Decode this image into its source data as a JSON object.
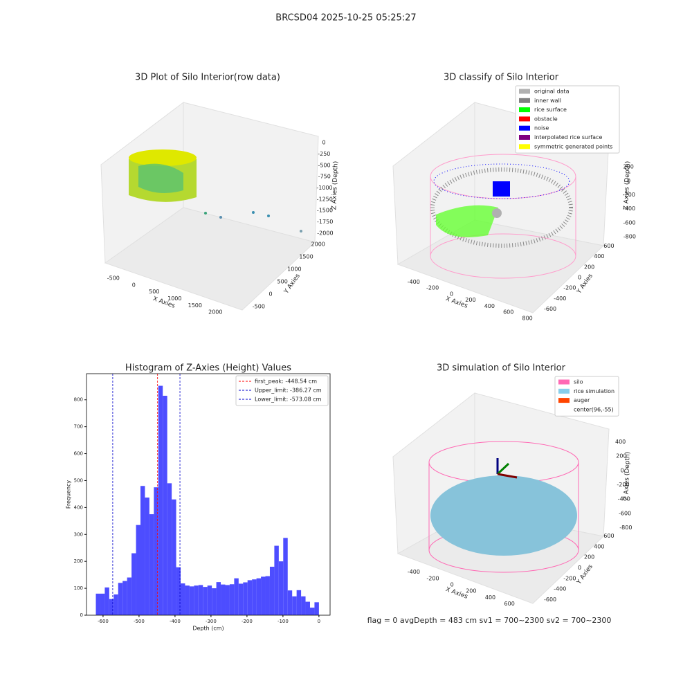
{
  "figure_title": "BRCSD04 2025-10-25 05:25:27",
  "chart_data": [
    {
      "type": "scatter3d",
      "title": "3D Plot of Silo Interior(row data)",
      "xlabel": "X Axies",
      "ylabel": "Y Axies",
      "zlabel": "Z Axies (Depth)",
      "xlim": [
        -700,
        2300
      ],
      "xticks": [
        -500,
        0,
        500,
        1000,
        1500,
        2000
      ],
      "ylim": [
        -700,
        2300
      ],
      "yticks": [
        -500,
        0,
        500,
        1000,
        1500,
        2000
      ],
      "zlim": [
        -2100,
        100
      ],
      "zticks": [
        0,
        -250,
        -500,
        -750,
        -1000,
        -1250,
        -1500,
        -1750,
        -2000
      ]
    },
    {
      "type": "scatter3d",
      "title": "3D classify of Silo Interior",
      "xlabel": "X Axies",
      "ylabel": "Y Axies",
      "zlabel": "Z Axies (Depth)",
      "xlim": [
        -500,
        850
      ],
      "xticks": [
        -400,
        -200,
        0,
        200,
        400,
        600,
        800
      ],
      "ylim": [
        -700,
        700
      ],
      "yticks": [
        -600,
        -400,
        -200,
        0,
        200,
        400,
        600
      ],
      "zlim": [
        -900,
        300
      ],
      "zticks": [
        200,
        0,
        -200,
        -400,
        -600,
        -800
      ],
      "legend": [
        {
          "name": "original data",
          "color": "#b0b0b0"
        },
        {
          "name": "inner wall",
          "color": "#808080"
        },
        {
          "name": "rice surface",
          "color": "#00ff00"
        },
        {
          "name": "obstacle",
          "color": "#ff0000"
        },
        {
          "name": "noise",
          "color": "#0000ff"
        },
        {
          "name": "interpolated rice surface",
          "color": "#800080"
        },
        {
          "name": "symmetric generated points",
          "color": "#ffff00"
        }
      ]
    },
    {
      "type": "histogram",
      "title": "Histogram of Z-Axies (Height) Values",
      "xlabel": "Depth (cm)",
      "ylabel": "Frequency",
      "color": "#4d4dff",
      "bins": [
        -620,
        -607.6,
        -595.2,
        -582.8,
        -570.4,
        -558,
        -545.6,
        -533.2,
        -520.8,
        -508.4,
        -496,
        -483.6,
        -471.2,
        -458.8,
        -446.4,
        -434,
        -421.6,
        -409.2,
        -396.8,
        -384.4,
        -372,
        -359.6,
        -347.2,
        -334.8,
        -322.4,
        -310,
        -297.6,
        -285.2,
        -272.8,
        -260.4,
        -248,
        -235.6,
        -223.2,
        -210.8,
        -198.4,
        -186,
        -173.6,
        -161.2,
        -148.8,
        -136.4,
        -124,
        -111.6,
        -99.2,
        -86.8,
        -74.4,
        -62,
        -49.6,
        -37.2,
        -24.8,
        -12.4,
        0
      ],
      "values": [
        80,
        80,
        103,
        60,
        77,
        120,
        127,
        140,
        230,
        335,
        480,
        437,
        375,
        475,
        852,
        815,
        490,
        430,
        178,
        118,
        110,
        107,
        110,
        112,
        105,
        110,
        100,
        123,
        114,
        112,
        115,
        137,
        117,
        122,
        130,
        133,
        137,
        143,
        145,
        180,
        258,
        200,
        287,
        92,
        70,
        93,
        70,
        50,
        28,
        48
      ],
      "xlim": [
        -646,
        31
      ],
      "xticks": [
        -600,
        -500,
        -400,
        -300,
        -200,
        -100,
        0
      ],
      "ylim": [
        0,
        897
      ],
      "yticks": [
        0,
        100,
        200,
        300,
        400,
        500,
        600,
        700,
        800
      ],
      "lines": [
        {
          "value": -448.54,
          "label": "first_peak: -448.54 cm",
          "color": "#ff0000"
        },
        {
          "value": -386.27,
          "label": "Upper_limit: -386.27 cm",
          "color": "#0000cc"
        },
        {
          "value": -573.08,
          "label": "Lower_limit: -573.08 cm",
          "color": "#0000cc"
        }
      ]
    },
    {
      "type": "scatter3d",
      "title": "3D simulation of Silo Interior",
      "xlabel": "X Axies",
      "ylabel": "Y Axies",
      "zlabel": "Z Axies (Depth)",
      "xlim": [
        -500,
        700
      ],
      "xticks": [
        -400,
        -200,
        0,
        200,
        400,
        600
      ],
      "ylim": [
        -700,
        700
      ],
      "yticks": [
        -600,
        -400,
        -200,
        0,
        200,
        400,
        600
      ],
      "zlim": [
        -900,
        500
      ],
      "zticks": [
        400,
        200,
        0,
        -200,
        -400,
        -600,
        -800
      ],
      "legend": [
        {
          "name": "silo",
          "color": "#ff69b4"
        },
        {
          "name": "rice simulation",
          "color": "#87ceeb"
        },
        {
          "name": "auger",
          "color": "#ff4500"
        },
        {
          "name": "center(96,-55)",
          "color": "#ffffff"
        }
      ],
      "annotation": "flag = 0     avgDepth = 483 cm  sv1 = 700~2300  sv2 = 700~2300"
    }
  ]
}
